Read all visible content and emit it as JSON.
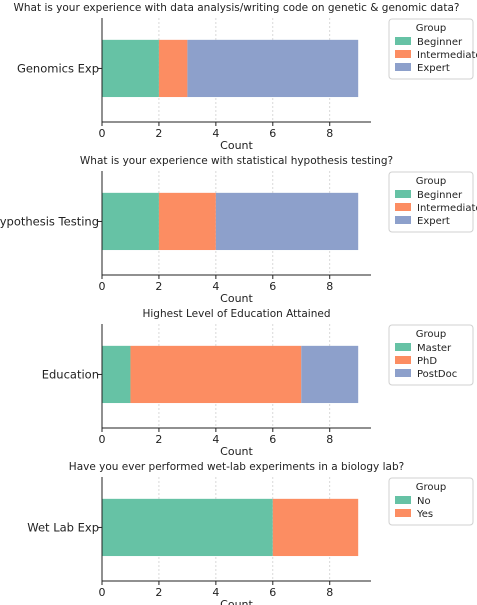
{
  "chart_data": [
    {
      "type": "bar",
      "orientation": "horizontal",
      "stacked": true,
      "title": "What is your experience with data analysis/writing code on genetic & genomic data?",
      "xlabel": "Count",
      "ylabel": "",
      "categories": [
        "Genomics Exp"
      ],
      "series": [
        {
          "name": "Beginner",
          "values": [
            2
          ],
          "color": "#66c2a5"
        },
        {
          "name": "Intermediate",
          "values": [
            1
          ],
          "color": "#fc8d62"
        },
        {
          "name": "Expert",
          "values": [
            6
          ],
          "color": "#8da0cb"
        }
      ],
      "legend_title": "Group",
      "legend_position": "right",
      "xlim": [
        0,
        9.45
      ],
      "xticks": [
        0,
        2,
        4,
        6,
        8
      ],
      "grid": true
    },
    {
      "type": "bar",
      "orientation": "horizontal",
      "stacked": true,
      "title": "What is your experience with statistical hypothesis testing?",
      "xlabel": "Count",
      "ylabel": "",
      "categories": [
        "Hypothesis Testing"
      ],
      "series": [
        {
          "name": "Beginner",
          "values": [
            2
          ],
          "color": "#66c2a5"
        },
        {
          "name": "Intermediate",
          "values": [
            2
          ],
          "color": "#fc8d62"
        },
        {
          "name": "Expert",
          "values": [
            5
          ],
          "color": "#8da0cb"
        }
      ],
      "legend_title": "Group",
      "legend_position": "right",
      "xlim": [
        0,
        9.45
      ],
      "xticks": [
        0,
        2,
        4,
        6,
        8
      ],
      "grid": true
    },
    {
      "type": "bar",
      "orientation": "horizontal",
      "stacked": true,
      "title": "Highest Level of Education Attained",
      "xlabel": "Count",
      "ylabel": "",
      "categories": [
        "Education"
      ],
      "series": [
        {
          "name": "Master",
          "values": [
            1
          ],
          "color": "#66c2a5"
        },
        {
          "name": "PhD",
          "values": [
            6
          ],
          "color": "#fc8d62"
        },
        {
          "name": "PostDoc",
          "values": [
            2
          ],
          "color": "#8da0cb"
        }
      ],
      "legend_title": "Group",
      "legend_position": "right",
      "xlim": [
        0,
        9.45
      ],
      "xticks": [
        0,
        2,
        4,
        6,
        8
      ],
      "grid": true
    },
    {
      "type": "bar",
      "orientation": "horizontal",
      "stacked": true,
      "title": "Have you ever performed wet-lab experiments in a biology lab?",
      "xlabel": "Count",
      "ylabel": "",
      "categories": [
        "Wet Lab Exp"
      ],
      "series": [
        {
          "name": "No",
          "values": [
            6
          ],
          "color": "#66c2a5"
        },
        {
          "name": "Yes",
          "values": [
            3
          ],
          "color": "#fc8d62"
        }
      ],
      "legend_title": "Group",
      "legend_position": "right",
      "xlim": [
        0,
        9.45
      ],
      "xticks": [
        0,
        2,
        4,
        6,
        8
      ],
      "grid": true
    }
  ]
}
